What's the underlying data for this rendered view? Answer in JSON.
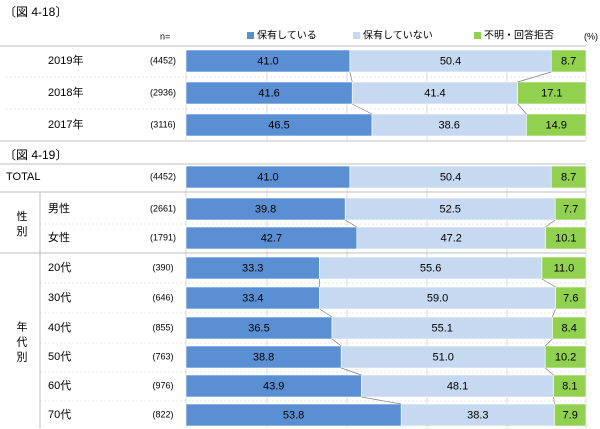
{
  "chart_data": [
    {
      "type": "bar",
      "stacked": true,
      "orientation": "horizontal",
      "title": "〔図 4-18〕",
      "n_header": "n=",
      "percent_label": "(%)",
      "legend_position": "top",
      "legend": [
        "保有している",
        "保有していない",
        "不明・回答拒否"
      ],
      "colors": [
        "#5b8fd3",
        "#c6d9f1",
        "#92d050"
      ],
      "rows": [
        {
          "label": "2019年",
          "n": "(4452)",
          "values": [
            41.0,
            50.4,
            8.7
          ],
          "labels": [
            "41.0",
            "50.4",
            "8.7"
          ]
        },
        {
          "label": "2018年",
          "n": "(2936)",
          "values": [
            41.6,
            41.4,
            17.1
          ],
          "labels": [
            "41.6",
            "41.4",
            "17.1"
          ]
        },
        {
          "label": "2017年",
          "n": "(3116)",
          "values": [
            46.5,
            38.6,
            14.9
          ],
          "labels": [
            "46.5",
            "38.6",
            "14.9"
          ]
        }
      ]
    },
    {
      "type": "bar",
      "stacked": true,
      "orientation": "horizontal",
      "title": "〔図 4-19〕",
      "colors": [
        "#5b8fd3",
        "#c6d9f1",
        "#92d050"
      ],
      "groups": [
        {
          "label": "",
          "rows": [
            {
              "label": "TOTAL",
              "n": "(4452)",
              "values": [
                41.0,
                50.4,
                8.7
              ],
              "labels": [
                "41.0",
                "50.4",
                "8.7"
              ]
            }
          ]
        },
        {
          "label": "性別",
          "rows": [
            {
              "label": "男性",
              "n": "(2661)",
              "values": [
                39.8,
                52.5,
                7.7
              ],
              "labels": [
                "39.8",
                "52.5",
                "7.7"
              ]
            },
            {
              "label": "女性",
              "n": "(1791)",
              "values": [
                42.7,
                47.2,
                10.1
              ],
              "labels": [
                "42.7",
                "47.2",
                "10.1"
              ]
            }
          ]
        },
        {
          "label": "年代別",
          "rows": [
            {
              "label": "20代",
              "n": "(390)",
              "values": [
                33.3,
                55.6,
                11.0
              ],
              "labels": [
                "33.3",
                "55.6",
                "11.0"
              ]
            },
            {
              "label": "30代",
              "n": "(646)",
              "values": [
                33.4,
                59.0,
                7.6
              ],
              "labels": [
                "33.4",
                "59.0",
                "7.6"
              ]
            },
            {
              "label": "40代",
              "n": "(855)",
              "values": [
                36.5,
                55.1,
                8.4
              ],
              "labels": [
                "36.5",
                "55.1",
                "8.4"
              ]
            },
            {
              "label": "50代",
              "n": "(763)",
              "values": [
                38.8,
                51.0,
                10.2
              ],
              "labels": [
                "38.8",
                "51.0",
                "10.2"
              ]
            },
            {
              "label": "60代",
              "n": "(976)",
              "values": [
                43.9,
                48.1,
                8.1
              ],
              "labels": [
                "43.9",
                "48.1",
                "8.1"
              ]
            },
            {
              "label": "70代",
              "n": "(822)",
              "values": [
                53.8,
                38.3,
                7.9
              ],
              "labels": [
                "53.8",
                "38.3",
                "7.9"
              ]
            }
          ]
        }
      ]
    }
  ]
}
